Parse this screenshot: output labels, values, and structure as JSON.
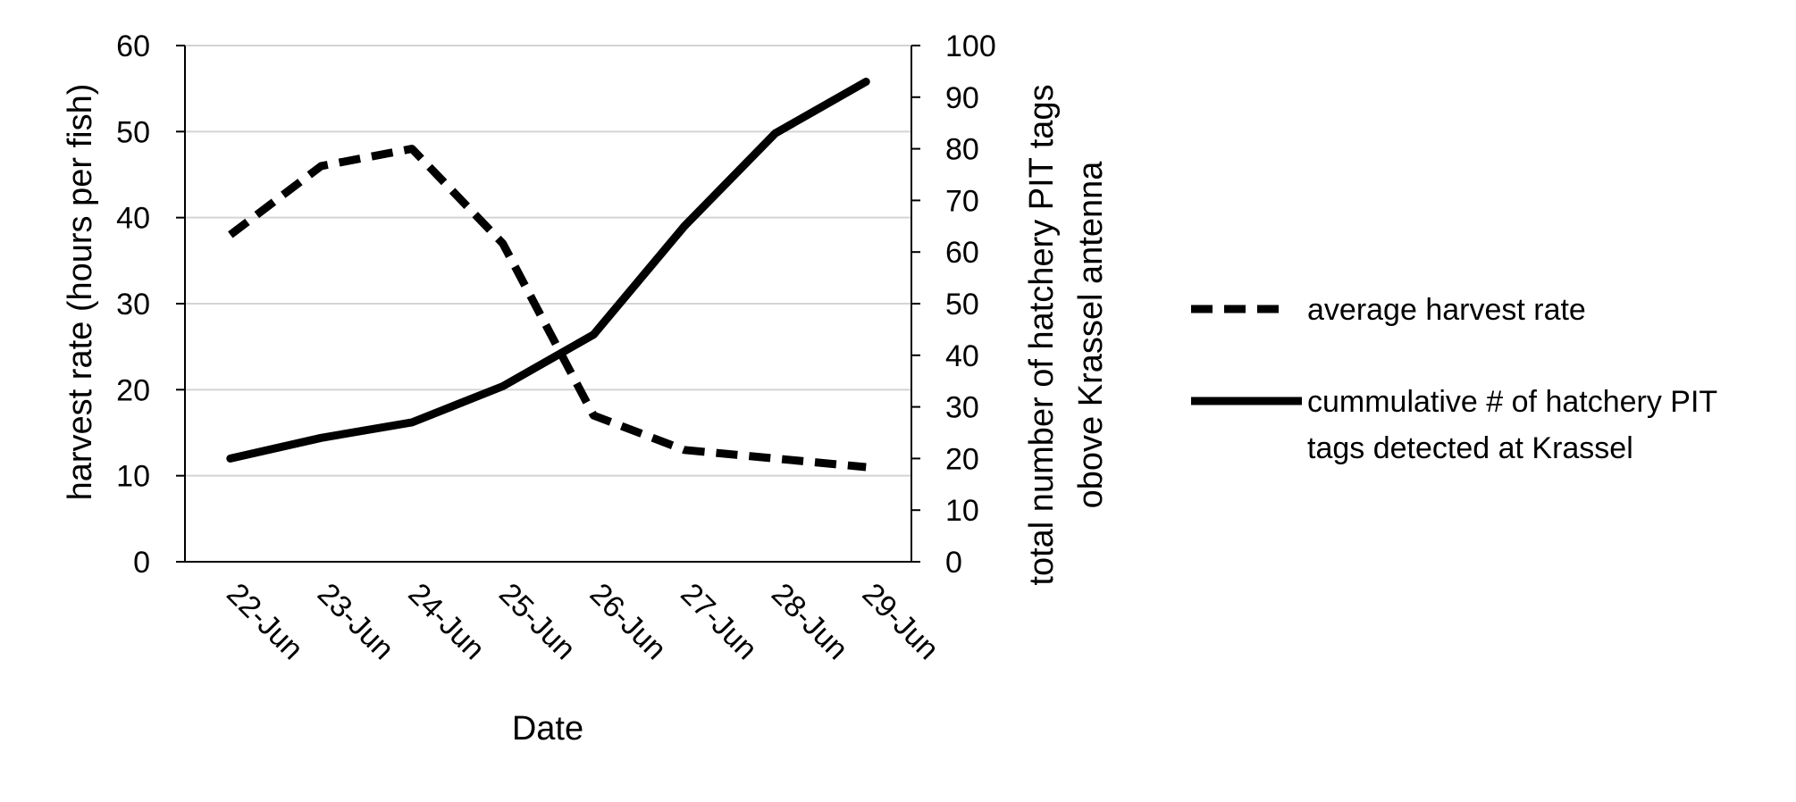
{
  "chart_data": {
    "type": "line",
    "title": "",
    "xlabel": "Date",
    "ylabel": "harvest rate (hours per fish)",
    "y2label": [
      "total number of hatchery PIT tags",
      "obove Krassel antenna"
    ],
    "categories": [
      "22-Jun",
      "23-Jun",
      "24-Jun",
      "25-Jun",
      "26-Jun",
      "27-Jun",
      "28-Jun",
      "29-Jun"
    ],
    "ylim": [
      0,
      60
    ],
    "yticks": [
      "0",
      "10",
      "20",
      "30",
      "40",
      "50",
      "60"
    ],
    "y2lim": [
      0,
      100
    ],
    "y2ticks": [
      "0",
      "10",
      "20",
      "30",
      "40",
      "50",
      "60",
      "70",
      "80",
      "90",
      "100"
    ],
    "grid": true,
    "legend_position": "right",
    "series": [
      {
        "name": "average harvest rate",
        "axis": "left",
        "style": "dashed",
        "color": "#000000",
        "values": [
          38,
          46,
          48,
          37,
          17,
          13,
          12,
          11
        ]
      },
      {
        "name": "cummulative # of hatchery PIT tags detected at Krassel",
        "name_lines": [
          "cummulative # of hatchery PIT",
          "tags detected at Krassel"
        ],
        "axis": "right",
        "style": "solid",
        "color": "#000000",
        "values": [
          20,
          24,
          27,
          34,
          44,
          65,
          83,
          93
        ]
      }
    ]
  }
}
